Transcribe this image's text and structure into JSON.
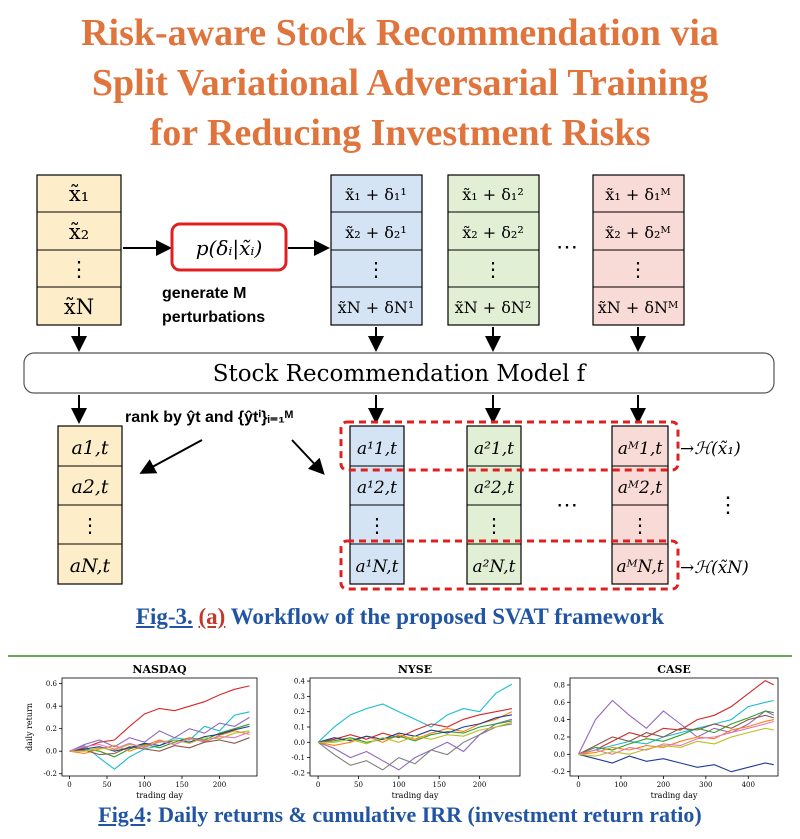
{
  "title": {
    "line1": "Risk-aware Stock Recommendation via",
    "line2": "Split Variational Adversarial Training",
    "line3": "for Reducing Investment Risks"
  },
  "diagram": {
    "inputs": [
      "x̃₁",
      "x̃₂",
      "⋮",
      "x̃N"
    ],
    "perturb_fn": "p(δᵢ|x̃ᵢ)",
    "generate_label_1": "generate M",
    "generate_label_2": "perturbations",
    "pert_cols": [
      [
        "x̃₁ + δ₁¹",
        "x̃₂ + δ₂¹",
        "⋮",
        "x̃N + δN¹"
      ],
      [
        "x̃₁ + δ₁²",
        "x̃₂ + δ₂²",
        "⋮",
        "x̃N + δN²"
      ],
      [
        "x̃₁ + δ₁ᴹ",
        "x̃₂ + δ₂ᴹ",
        "⋮",
        "x̃N + δNᴹ"
      ]
    ],
    "ellipsis": "⋯",
    "model_label": "Stock Recommendation Model f",
    "rank_label": "rank by ŷt and {ŷtⁱ}ᵢ₌₁ᴹ",
    "output_col": [
      "a1,t",
      "a2,t",
      "⋮",
      "aN,t"
    ],
    "rank_cols": [
      [
        "a¹1,t",
        "a¹2,t",
        "⋮",
        "a¹N,t"
      ],
      [
        "a²1,t",
        "a²2,t",
        "⋮",
        "a²N,t"
      ],
      [
        "aᴹ1,t",
        "aᴹ2,t",
        "⋮",
        "aᴹN,t"
      ]
    ],
    "entropy_top": "→ℋ(x̃₁)",
    "entropy_bottom": "→ℋ(x̃N)",
    "vdots": "⋮"
  },
  "fig3_caption": {
    "label": "Fig-3.",
    "sub": "(a)",
    "text": " Workflow of the proposed SVAT framework"
  },
  "fig4_caption": {
    "label": "Fig.4",
    "text": ": Daily returns & cumulative IRR (investment return ratio)"
  },
  "chart_data": [
    {
      "type": "line",
      "title": "NASDAQ",
      "xlabel": "trading day",
      "ylabel": "daily return",
      "xlim": [
        -10,
        250
      ],
      "ylim": [
        -0.22,
        0.65
      ],
      "xticks": [
        0,
        50,
        100,
        150,
        200
      ],
      "yticks": [
        -0.2,
        0.0,
        0.2,
        0.4,
        0.6
      ],
      "ytick_labels": [
        "-0.2",
        "0.0",
        "0.2",
        "0.4",
        "0.6"
      ],
      "series": [
        {
          "color": "#d62728",
          "x": [
            0,
            20,
            40,
            60,
            80,
            100,
            120,
            140,
            160,
            180,
            200,
            220,
            240
          ],
          "values": [
            0.0,
            0.03,
            0.08,
            0.1,
            0.22,
            0.33,
            0.38,
            0.36,
            0.4,
            0.44,
            0.5,
            0.55,
            0.58
          ]
        },
        {
          "color": "#17becf",
          "x": [
            0,
            20,
            40,
            60,
            80,
            100,
            120,
            140,
            160,
            180,
            200,
            220,
            240
          ],
          "values": [
            0.0,
            0.05,
            -0.06,
            -0.16,
            -0.05,
            0.02,
            0.05,
            0.12,
            0.1,
            0.22,
            0.18,
            0.32,
            0.35
          ]
        },
        {
          "color": "#9467bd",
          "x": [
            0,
            20,
            40,
            60,
            80,
            100,
            120,
            140,
            160,
            180,
            200,
            220,
            240
          ],
          "values": [
            0.0,
            0.06,
            0.1,
            0.04,
            0.12,
            0.08,
            0.18,
            0.12,
            0.2,
            0.16,
            0.25,
            0.22,
            0.3
          ]
        },
        {
          "color": "#2ca02c",
          "x": [
            0,
            20,
            40,
            60,
            80,
            100,
            120,
            140,
            160,
            180,
            200,
            220,
            240
          ],
          "values": [
            0.0,
            0.02,
            0.0,
            -0.05,
            0.02,
            0.06,
            0.03,
            0.08,
            0.12,
            0.1,
            0.16,
            0.2,
            0.24
          ]
        },
        {
          "color": "#ff7f0e",
          "x": [
            0,
            20,
            40,
            60,
            80,
            100,
            120,
            140,
            160,
            180,
            200,
            220,
            240
          ],
          "values": [
            0.0,
            -0.02,
            0.02,
            0.05,
            0.0,
            0.05,
            0.1,
            0.06,
            0.12,
            0.08,
            0.14,
            0.18,
            0.15
          ]
        },
        {
          "color": "#8c564b",
          "x": [
            0,
            20,
            40,
            60,
            80,
            100,
            120,
            140,
            160,
            180,
            200,
            220,
            240
          ],
          "values": [
            0.0,
            0.01,
            -0.03,
            -0.02,
            0.04,
            0.02,
            0.0,
            0.05,
            0.03,
            0.08,
            0.1,
            0.07,
            0.12
          ]
        },
        {
          "color": "#1f3a93",
          "x": [
            0,
            20,
            40,
            60,
            80,
            100,
            120,
            140,
            160,
            180,
            200,
            220,
            240
          ],
          "values": [
            0.0,
            0.02,
            0.04,
            0.0,
            0.03,
            0.07,
            0.05,
            0.1,
            0.08,
            0.13,
            0.15,
            0.19,
            0.22
          ]
        },
        {
          "color": "#bcbd22",
          "x": [
            0,
            20,
            40,
            60,
            80,
            100,
            120,
            140,
            160,
            180,
            200,
            220,
            240
          ],
          "values": [
            0.0,
            0.0,
            0.03,
            0.01,
            0.06,
            0.04,
            0.08,
            0.1,
            0.07,
            0.12,
            0.11,
            0.16,
            0.18
          ]
        },
        {
          "color": "#e377c2",
          "x": [
            0,
            20,
            40,
            60,
            80,
            100,
            120,
            140,
            160,
            180,
            200,
            220,
            240
          ],
          "values": [
            0.0,
            0.04,
            0.06,
            0.02,
            0.07,
            0.03,
            0.09,
            0.06,
            0.11,
            0.09,
            0.13,
            0.12,
            0.17
          ]
        }
      ]
    },
    {
      "type": "line",
      "title": "NYSE",
      "xlabel": "trading day",
      "ylabel": "",
      "xlim": [
        -10,
        250
      ],
      "ylim": [
        -0.22,
        0.42
      ],
      "xticks": [
        0,
        50,
        100,
        150,
        200
      ],
      "yticks": [
        -0.2,
        -0.1,
        0.0,
        0.1,
        0.2,
        0.3,
        0.4
      ],
      "ytick_labels": [
        "-0.2",
        "-0.1",
        "0.0",
        "0.1",
        "0.2",
        "0.3",
        "0.4"
      ],
      "series": [
        {
          "color": "#17becf",
          "x": [
            0,
            20,
            40,
            60,
            80,
            100,
            120,
            140,
            160,
            180,
            200,
            220,
            240
          ],
          "values": [
            0.0,
            0.1,
            0.18,
            0.22,
            0.25,
            0.2,
            0.15,
            0.1,
            0.18,
            0.22,
            0.2,
            0.32,
            0.38
          ]
        },
        {
          "color": "#9467bd",
          "x": [
            0,
            20,
            40,
            60,
            80,
            100,
            120,
            140,
            160,
            180,
            200,
            220,
            240
          ],
          "values": [
            0.0,
            -0.04,
            -0.1,
            -0.06,
            -0.12,
            -0.18,
            -0.1,
            -0.05,
            0.0,
            -0.06,
            0.05,
            0.12,
            0.15
          ]
        },
        {
          "color": "#7f7f7f",
          "x": [
            0,
            20,
            40,
            60,
            80,
            100,
            120,
            140,
            160,
            180,
            200,
            220,
            240
          ],
          "values": [
            0.0,
            -0.08,
            -0.15,
            -0.12,
            -0.18,
            -0.1,
            -0.14,
            -0.05,
            -0.08,
            0.0,
            0.05,
            0.1,
            0.12
          ]
        },
        {
          "color": "#d62728",
          "x": [
            0,
            20,
            40,
            60,
            80,
            100,
            120,
            140,
            160,
            180,
            200,
            220,
            240
          ],
          "values": [
            0.0,
            0.02,
            0.05,
            0.02,
            0.06,
            0.03,
            0.08,
            0.12,
            0.1,
            0.15,
            0.18,
            0.2,
            0.22
          ]
        },
        {
          "color": "#ff7f0e",
          "x": [
            0,
            20,
            40,
            60,
            80,
            100,
            120,
            140,
            160,
            180,
            200,
            220,
            240
          ],
          "values": [
            0.0,
            -0.02,
            0.0,
            0.04,
            0.0,
            0.05,
            0.02,
            0.06,
            0.09,
            0.07,
            0.12,
            0.15,
            0.2
          ]
        },
        {
          "color": "#2ca02c",
          "x": [
            0,
            20,
            40,
            60,
            80,
            100,
            120,
            140,
            160,
            180,
            200,
            220,
            240
          ],
          "values": [
            0.0,
            0.01,
            0.03,
            0.0,
            0.02,
            0.04,
            0.01,
            0.05,
            0.07,
            0.06,
            0.1,
            0.12,
            0.14
          ]
        },
        {
          "color": "#1f3a93",
          "x": [
            0,
            20,
            40,
            60,
            80,
            100,
            120,
            140,
            160,
            180,
            200,
            220,
            240
          ],
          "values": [
            0.0,
            0.03,
            0.01,
            0.04,
            0.02,
            0.06,
            0.04,
            0.08,
            0.06,
            0.1,
            0.12,
            0.16,
            0.18
          ]
        },
        {
          "color": "#bcbd22",
          "x": [
            0,
            20,
            40,
            60,
            80,
            100,
            120,
            140,
            160,
            180,
            200,
            220,
            240
          ],
          "values": [
            0.0,
            0.0,
            0.02,
            -0.01,
            0.03,
            0.0,
            0.04,
            0.02,
            0.05,
            0.04,
            0.08,
            0.1,
            0.13
          ]
        }
      ]
    },
    {
      "type": "line",
      "title": "CASE",
      "xlabel": "trading day",
      "ylabel": "",
      "xlim": [
        -20,
        470
      ],
      "ylim": [
        -0.25,
        0.88
      ],
      "xticks": [
        0,
        100,
        200,
        300,
        400
      ],
      "yticks": [
        -0.2,
        0.0,
        0.2,
        0.4,
        0.6,
        0.8
      ],
      "ytick_labels": [
        "-0.2",
        "0.0",
        "0.2",
        "0.4",
        "0.6",
        "0.8"
      ],
      "series": [
        {
          "color": "#d62728",
          "x": [
            0,
            40,
            80,
            120,
            160,
            200,
            240,
            280,
            320,
            360,
            400,
            440,
            460
          ],
          "values": [
            0.0,
            0.05,
            0.15,
            0.25,
            0.2,
            0.3,
            0.28,
            0.4,
            0.45,
            0.55,
            0.7,
            0.85,
            0.8
          ]
        },
        {
          "color": "#9467bd",
          "x": [
            0,
            40,
            80,
            120,
            160,
            200,
            240,
            280,
            320,
            360,
            400,
            440,
            460
          ],
          "values": [
            0.0,
            0.4,
            0.62,
            0.45,
            0.3,
            0.5,
            0.35,
            0.2,
            0.3,
            0.25,
            0.35,
            0.5,
            0.45
          ]
        },
        {
          "color": "#1f3a93",
          "x": [
            0,
            40,
            80,
            120,
            160,
            200,
            240,
            280,
            320,
            360,
            400,
            440,
            460
          ],
          "values": [
            0.0,
            -0.05,
            -0.1,
            -0.02,
            -0.08,
            -0.05,
            -0.1,
            -0.15,
            -0.12,
            -0.2,
            -0.15,
            -0.1,
            -0.12
          ]
        },
        {
          "color": "#17becf",
          "x": [
            0,
            40,
            80,
            120,
            160,
            200,
            240,
            280,
            320,
            360,
            400,
            440,
            460
          ],
          "values": [
            0.0,
            0.05,
            0.1,
            0.15,
            0.12,
            0.2,
            0.25,
            0.3,
            0.35,
            0.4,
            0.55,
            0.6,
            0.62
          ]
        },
        {
          "color": "#2ca02c",
          "x": [
            0,
            40,
            80,
            120,
            160,
            200,
            240,
            280,
            320,
            360,
            400,
            440,
            460
          ],
          "values": [
            0.0,
            0.08,
            0.05,
            0.12,
            0.18,
            0.15,
            0.22,
            0.3,
            0.25,
            0.35,
            0.42,
            0.5,
            0.48
          ]
        },
        {
          "color": "#ff7f0e",
          "x": [
            0,
            40,
            80,
            120,
            160,
            200,
            240,
            280,
            320,
            360,
            400,
            440,
            460
          ],
          "values": [
            0.0,
            0.02,
            0.08,
            0.05,
            0.1,
            0.08,
            0.15,
            0.2,
            0.18,
            0.28,
            0.32,
            0.38,
            0.4
          ]
        },
        {
          "color": "#8c564b",
          "x": [
            0,
            40,
            80,
            120,
            160,
            200,
            240,
            280,
            320,
            360,
            400,
            440,
            460
          ],
          "values": [
            0.0,
            0.1,
            0.2,
            0.15,
            0.25,
            0.2,
            0.3,
            0.28,
            0.35,
            0.3,
            0.4,
            0.45,
            0.42
          ]
        },
        {
          "color": "#e377c2",
          "x": [
            0,
            40,
            80,
            120,
            160,
            200,
            240,
            280,
            320,
            360,
            400,
            440,
            460
          ],
          "values": [
            0.0,
            0.05,
            0.0,
            0.08,
            0.05,
            0.12,
            0.1,
            0.18,
            0.2,
            0.25,
            0.3,
            0.35,
            0.38
          ]
        },
        {
          "color": "#bcbd22",
          "x": [
            0,
            40,
            80,
            120,
            160,
            200,
            240,
            280,
            320,
            360,
            400,
            440,
            460
          ],
          "values": [
            0.0,
            -0.02,
            0.03,
            0.0,
            0.06,
            0.1,
            0.08,
            0.15,
            0.12,
            0.2,
            0.25,
            0.3,
            0.28
          ]
        }
      ]
    }
  ]
}
